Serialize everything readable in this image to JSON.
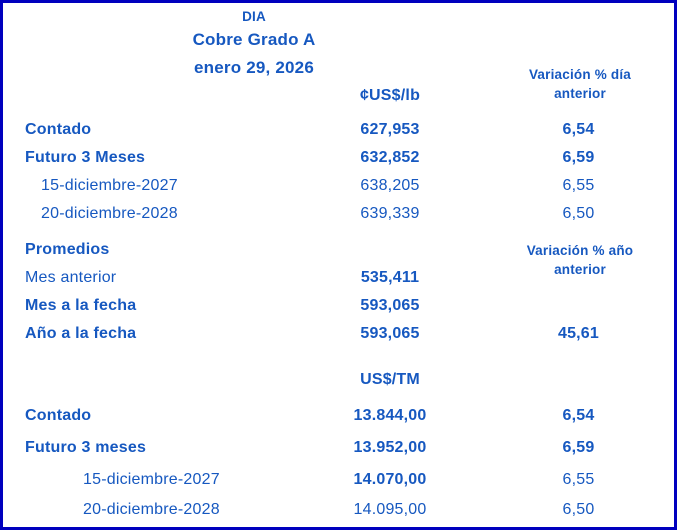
{
  "theme": {
    "text_color": "#1658C0",
    "border_color": "#0000BE",
    "background_color": "#FFFFFF"
  },
  "header": {
    "title": "DIA",
    "product": "Cobre Grado A",
    "date": "enero 29, 2026",
    "unit_lb": "¢US$/lb",
    "unit_tm": "US$/TM",
    "var_day_line1": "Variación % día",
    "var_day_line2": "anterior",
    "var_year_line1": "Variación % año",
    "var_year_line2": "anterior"
  },
  "lb_section": {
    "rows": [
      {
        "label": "Contado",
        "value": "627,953",
        "variation": "6,54"
      },
      {
        "label": "Futuro 3 Meses",
        "value": "632,852",
        "variation": "6,59"
      },
      {
        "label": "15-diciembre-2027",
        "value": "638,205",
        "variation": "6,55"
      },
      {
        "label": "20-diciembre-2028",
        "value": "639,339",
        "variation": "6,50"
      }
    ]
  },
  "promedios": {
    "header": "Promedios",
    "rows": [
      {
        "label": "Mes anterior",
        "value": "535,411"
      },
      {
        "label": "Mes a la fecha",
        "value": "593,065"
      },
      {
        "label": "Año a la fecha",
        "value": "593,065",
        "variation": "45,61"
      }
    ]
  },
  "tm_section": {
    "rows": [
      {
        "label": "Contado",
        "value": "13.844,00",
        "variation": "6,54"
      },
      {
        "label": "Futuro 3 meses",
        "value": "13.952,00",
        "variation": "6,59"
      },
      {
        "label": "15-diciembre-2027",
        "value": "14.070,00",
        "variation": "6,55"
      },
      {
        "label": "20-diciembre-2028",
        "value": "14.095,00",
        "variation": "6,50"
      }
    ]
  }
}
